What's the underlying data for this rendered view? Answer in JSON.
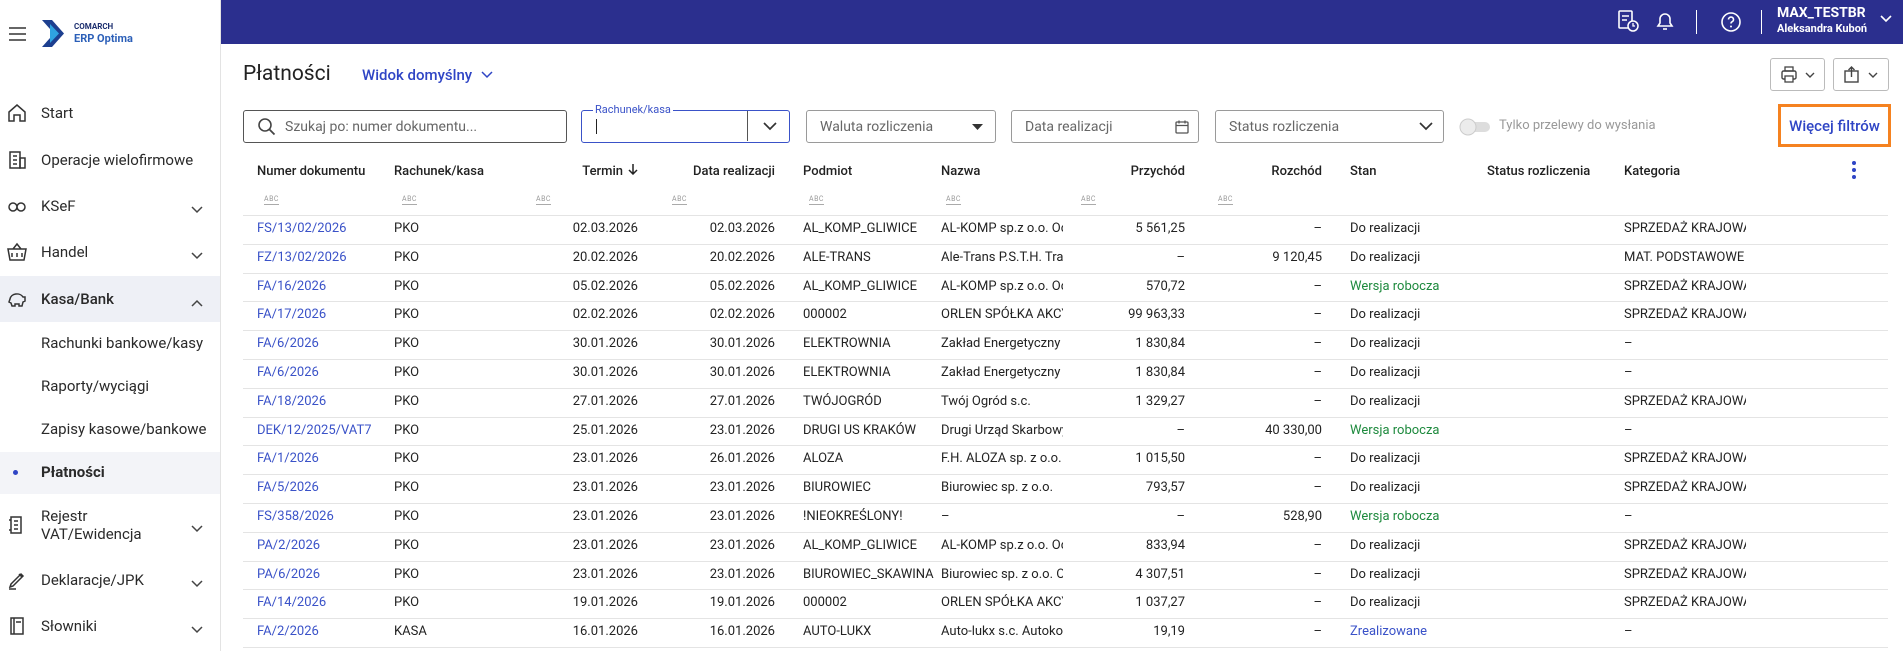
{
  "logo": {
    "brand": "COMARCH",
    "product": "ERP Optima"
  },
  "user": {
    "login": "MAX_TESTBR",
    "name": "Aleksandra Kuboń"
  },
  "sidebar": {
    "items": [
      {
        "label": "Start",
        "icon": "home"
      },
      {
        "label": "Operacje wielofirmowe",
        "icon": "building"
      },
      {
        "label": "KSeF",
        "icon": "link",
        "expandable": true
      },
      {
        "label": "Handel",
        "icon": "basket",
        "expandable": true
      },
      {
        "label": "Kasa/Bank",
        "icon": "piggy",
        "expandable": true,
        "expanded": true,
        "children": [
          "Rachunki bankowe/kasy",
          "Raporty/wyciągi",
          "Zapisy kasowe/bankowe",
          "Płatności"
        ],
        "active_child": 3
      },
      {
        "label": "Rejestr VAT/Ewidencja",
        "icon": "doc",
        "expandable": true
      },
      {
        "label": "Deklaracje/JPK",
        "icon": "pen",
        "expandable": true
      },
      {
        "label": "Słowniki",
        "icon": "book",
        "expandable": true
      }
    ]
  },
  "page": {
    "title": "Płatności",
    "view": "Widok domyślny"
  },
  "filters": {
    "search": "Szukaj po: numer dokumentu...",
    "account_label": "Rachunek/kasa",
    "currency": "Waluta rozliczenia",
    "date": "Data realizacji",
    "status": "Status rozliczenia",
    "toggle": "Tylko przelewy do wysłania",
    "more": "Więcej filtrów"
  },
  "table": {
    "columns": [
      "Numer dokumentu",
      "Rachunek/kasa",
      "Termin",
      "Data realizacji",
      "Podmiot",
      "Nazwa",
      "Przychód",
      "Rozchód",
      "Stan",
      "Status rozliczenia",
      "Kategoria"
    ],
    "filter_icon": "ABC",
    "rows": [
      {
        "numer": "FS/13/02/2026",
        "rachunek": "PKO",
        "termin": "02.03.2026",
        "data": "02.03.2026",
        "podmiot": "AL_KOMP_GLIWICE",
        "nazwa": "AL-KOMP sp.z o.o. Od",
        "przychod": "5 561,25",
        "rozchod": "–",
        "stan": "Do realizacji",
        "kategoria": "SPRZEDAŻ KRAJOWA"
      },
      {
        "numer": "FZ/13/02/2026",
        "rachunek": "PKO",
        "termin": "20.02.2026",
        "data": "20.02.2026",
        "podmiot": "ALE-TRANS",
        "nazwa": "Ale-Trans P.S.T.H. Tran",
        "przychod": "–",
        "rozchod": "9 120,45",
        "stan": "Do realizacji",
        "kategoria": "MAT. PODSTAWOWE"
      },
      {
        "numer": "FA/16/2026",
        "rachunek": "PKO",
        "termin": "05.02.2026",
        "data": "05.02.2026",
        "podmiot": "AL_KOMP_GLIWICE",
        "nazwa": "AL-KOMP sp.z o.o. Od",
        "przychod": "570,72",
        "rozchod": "–",
        "stan": "Wersja robocza",
        "stan_color": "#1e8a3e",
        "kategoria": "SPRZEDAŻ KRAJOWA"
      },
      {
        "numer": "FA/17/2026",
        "rachunek": "PKO",
        "termin": "02.02.2026",
        "data": "02.02.2026",
        "podmiot": "000002",
        "nazwa": "ORLEN SPÓŁKA AKCY",
        "przychod": "99 963,33",
        "rozchod": "–",
        "stan": "Do realizacji",
        "kategoria": "SPRZEDAŻ KRAJOWA"
      },
      {
        "numer": "FA/6/2026",
        "rachunek": "PKO",
        "termin": "30.01.2026",
        "data": "30.01.2026",
        "podmiot": "ELEKTROWNIA",
        "nazwa": "Zakład Energetyczny c",
        "przychod": "1 830,84",
        "rozchod": "–",
        "stan": "Do realizacji",
        "kategoria": "–"
      },
      {
        "numer": "FA/6/2026",
        "rachunek": "PKO",
        "termin": "30.01.2026",
        "data": "30.01.2026",
        "podmiot": "ELEKTROWNIA",
        "nazwa": "Zakład Energetyczny c",
        "przychod": "1 830,84",
        "rozchod": "–",
        "stan": "Do realizacji",
        "kategoria": "–"
      },
      {
        "numer": "FA/18/2026",
        "rachunek": "PKO",
        "termin": "27.01.2026",
        "data": "27.01.2026",
        "podmiot": "TWÓJOGRÓD",
        "nazwa": "Twój Ogród s.c.",
        "przychod": "1 329,27",
        "rozchod": "–",
        "stan": "Do realizacji",
        "kategoria": "SPRZEDAŻ KRAJOWA"
      },
      {
        "numer": "DEK/12/2025/VAT7",
        "rachunek": "PKO",
        "termin": "25.01.2026",
        "data": "23.01.2026",
        "podmiot": "DRUGI US KRAKÓW",
        "nazwa": "Drugi Urząd Skarbowy",
        "przychod": "–",
        "rozchod": "40 330,00",
        "stan": "Wersja robocza",
        "stan_color": "#1e8a3e",
        "kategoria": "–"
      },
      {
        "numer": "FA/1/2026",
        "rachunek": "PKO",
        "termin": "23.01.2026",
        "data": "26.01.2026",
        "podmiot": "ALOZA",
        "nazwa": "F.H. ALOZA sp. z o.o.",
        "przychod": "1 015,50",
        "rozchod": "–",
        "stan": "Do realizacji",
        "kategoria": "SPRZEDAŻ KRAJOWA"
      },
      {
        "numer": "FA/5/2026",
        "rachunek": "PKO",
        "termin": "23.01.2026",
        "data": "23.01.2026",
        "podmiot": "BIUROWIEC",
        "nazwa": "Biurowiec sp. z o.o.",
        "przychod": "793,57",
        "rozchod": "–",
        "stan": "Do realizacji",
        "kategoria": "SPRZEDAŻ KRAJOWA"
      },
      {
        "numer": "FS/358/2026",
        "rachunek": "PKO",
        "termin": "23.01.2026",
        "data": "23.01.2026",
        "podmiot": "!NIEOKREŚLONY!",
        "nazwa": "–",
        "przychod": "–",
        "rozchod": "528,90",
        "stan": "Wersja robocza",
        "stan_color": "#1e8a3e",
        "kategoria": "–"
      },
      {
        "numer": "PA/2/2026",
        "rachunek": "PKO",
        "termin": "23.01.2026",
        "data": "23.01.2026",
        "podmiot": "AL_KOMP_GLIWICE",
        "nazwa": "AL-KOMP sp.z o.o. Od",
        "przychod": "833,94",
        "rozchod": "–",
        "stan": "Do realizacji",
        "kategoria": "SPRZEDAŻ KRAJOWA"
      },
      {
        "numer": "PA/6/2026",
        "rachunek": "PKO",
        "termin": "23.01.2026",
        "data": "23.01.2026",
        "podmiot": "BIUROWIEC_SKAWINA",
        "nazwa": "Biurowiec sp. z o.o. Oc",
        "przychod": "4 307,51",
        "rozchod": "–",
        "stan": "Do realizacji",
        "kategoria": "SPRZEDAŻ KRAJOWA"
      },
      {
        "numer": "FA/14/2026",
        "rachunek": "PKO",
        "termin": "19.01.2026",
        "data": "19.01.2026",
        "podmiot": "000002",
        "nazwa": "ORLEN SPÓŁKA AKCY",
        "przychod": "1 037,27",
        "rozchod": "–",
        "stan": "Do realizacji",
        "kategoria": "SPRZEDAŻ KRAJOWA"
      },
      {
        "numer": "FA/2/2026",
        "rachunek": "KASA",
        "termin": "16.01.2026",
        "data": "16.01.2026",
        "podmiot": "AUTO-LUKX",
        "nazwa": "Auto-lukx s.c. Autokor",
        "przychod": "19,19",
        "rozchod": "–",
        "stan": "Zrealizowane",
        "stan_color": "#3a52c8",
        "kategoria": "–"
      }
    ]
  }
}
